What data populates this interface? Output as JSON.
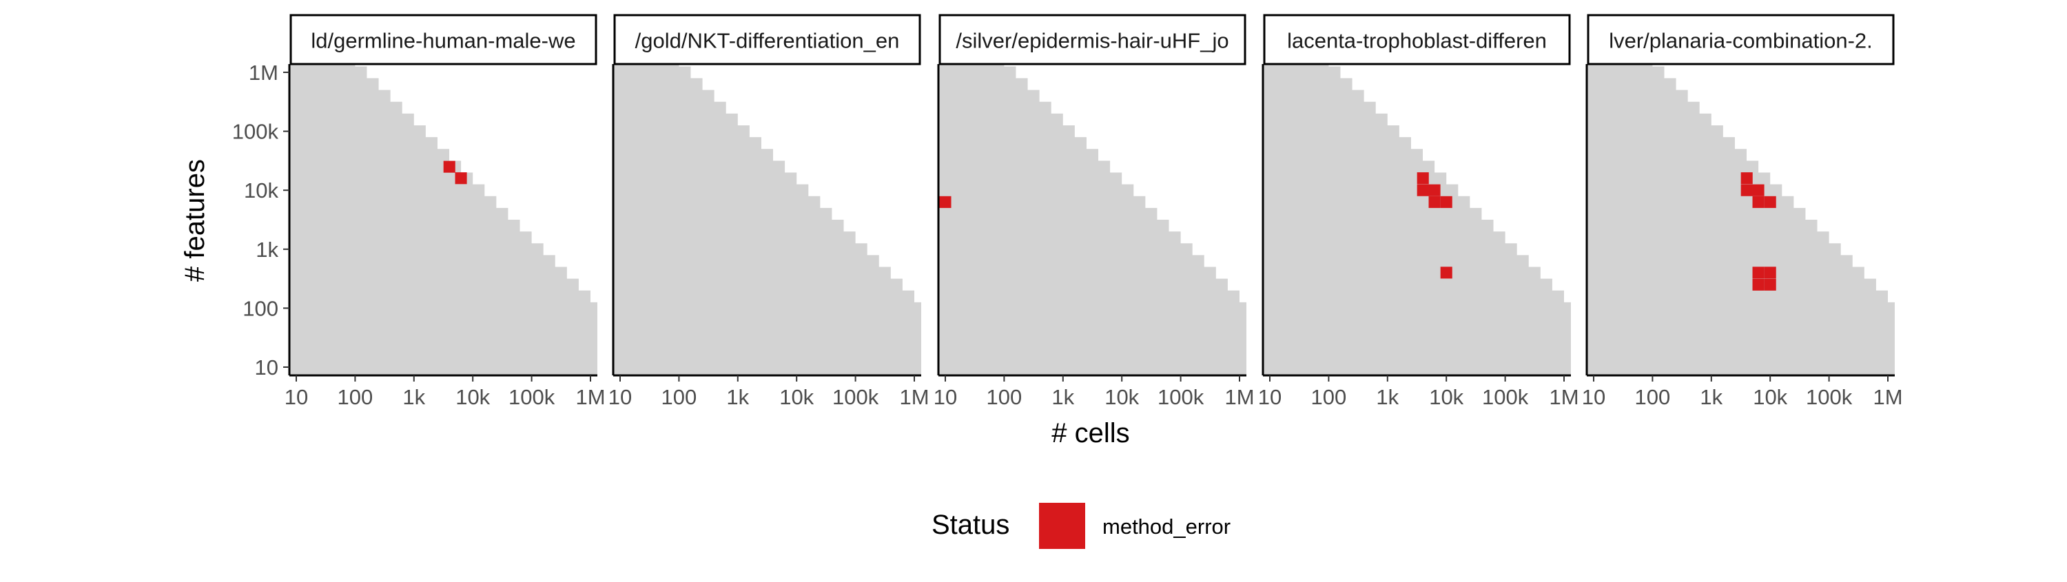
{
  "chart_data": {
    "type": "heatmap",
    "xlabel": "# cells",
    "ylabel": "# features",
    "x_scale": "log10",
    "y_scale": "log10",
    "xlim": [
      10,
      1000000
    ],
    "ylim": [
      10,
      1000000
    ],
    "x_ticks": [
      {
        "value": 10,
        "label": "10"
      },
      {
        "value": 100,
        "label": "100"
      },
      {
        "value": 1000,
        "label": "1k"
      },
      {
        "value": 10000,
        "label": "10k"
      },
      {
        "value": 100000,
        "label": "100k"
      },
      {
        "value": 1000000,
        "label": "1M"
      }
    ],
    "y_ticks": [
      {
        "value": 10,
        "label": "10"
      },
      {
        "value": 100,
        "label": "100"
      },
      {
        "value": 1000,
        "label": "1k"
      },
      {
        "value": 10000,
        "label": "10k"
      },
      {
        "value": 100000,
        "label": "100k"
      },
      {
        "value": 1000000,
        "label": "1M"
      }
    ],
    "background_color": "#d3d3d3",
    "grid": false,
    "legend": {
      "title": "Status",
      "placement": "bottom",
      "items": [
        {
          "label": "method_error",
          "color": "#d7191c"
        }
      ]
    },
    "panels": [
      {
        "title": "ld/germline-human-male-we",
        "cells": [
          {
            "cells": 4000,
            "features": 25000,
            "status": "method_error"
          },
          {
            "cells": 6300,
            "features": 16000,
            "status": "method_error"
          }
        ]
      },
      {
        "title": "/gold/NKT-differentiation_en",
        "cells": []
      },
      {
        "title": "/silver/epidermis-hair-uHF_jo",
        "cells": [
          {
            "cells": 10,
            "features": 6300,
            "status": "method_error"
          }
        ]
      },
      {
        "title": "lacenta-trophoblast-differen",
        "cells": [
          {
            "cells": 4000,
            "features": 10000,
            "status": "method_error"
          },
          {
            "cells": 4000,
            "features": 16000,
            "status": "method_error"
          },
          {
            "cells": 6300,
            "features": 6300,
            "status": "method_error"
          },
          {
            "cells": 6300,
            "features": 10000,
            "status": "method_error"
          },
          {
            "cells": 10000,
            "features": 6300,
            "status": "method_error"
          },
          {
            "cells": 10000,
            "features": 400,
            "status": "method_error"
          }
        ]
      },
      {
        "title": "lver/planaria-combination-2.",
        "cells": [
          {
            "cells": 4000,
            "features": 10000,
            "status": "method_error"
          },
          {
            "cells": 4000,
            "features": 16000,
            "status": "method_error"
          },
          {
            "cells": 6300,
            "features": 6300,
            "status": "method_error"
          },
          {
            "cells": 6300,
            "features": 10000,
            "status": "method_error"
          },
          {
            "cells": 10000,
            "features": 6300,
            "status": "method_error"
          },
          {
            "cells": 6300,
            "features": 250,
            "status": "method_error"
          },
          {
            "cells": 6300,
            "features": 400,
            "status": "method_error"
          },
          {
            "cells": 10000,
            "features": 250,
            "status": "method_error"
          },
          {
            "cells": 10000,
            "features": 400,
            "status": "method_error"
          }
        ]
      }
    ]
  }
}
